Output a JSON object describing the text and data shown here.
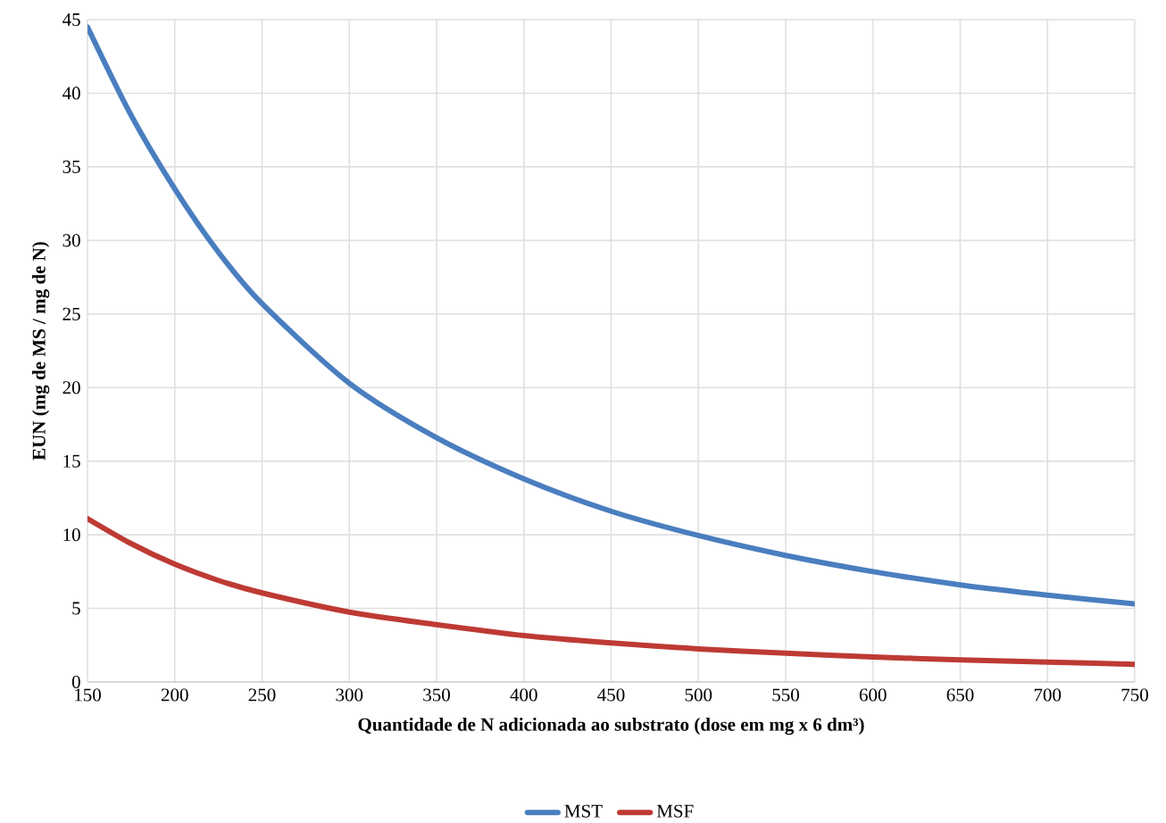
{
  "chart_data": {
    "type": "line",
    "xlabel": "Quantidade de N adicionada ao substrato (dose em mg x 6 dm³)",
    "ylabel": "EUN (mg de MS / mg de N)",
    "x": [
      150,
      175,
      200,
      225,
      250,
      300,
      350,
      400,
      450,
      500,
      550,
      600,
      650,
      700,
      750
    ],
    "series": [
      {
        "name": "MST",
        "color": "#4a7ebf",
        "values": [
          44.5,
          38.5,
          33.5,
          29.2,
          25.7,
          20.3,
          16.6,
          13.8,
          11.6,
          9.95,
          8.6,
          7.5,
          6.6,
          5.9,
          5.3
        ]
      },
      {
        "name": "MSF",
        "color": "#be3a34",
        "values": [
          11.1,
          9.4,
          8.0,
          6.9,
          6.05,
          4.75,
          3.9,
          3.15,
          2.65,
          2.25,
          1.95,
          1.7,
          1.5,
          1.35,
          1.2
        ]
      }
    ],
    "xlim": [
      150,
      750
    ],
    "xticks": [
      150,
      200,
      250,
      300,
      350,
      400,
      450,
      500,
      550,
      600,
      650,
      700,
      750
    ],
    "ylim": [
      0,
      45
    ],
    "yticks": [
      0,
      5,
      10,
      15,
      20,
      25,
      30,
      35,
      40,
      45
    ],
    "grid": true,
    "legend": "bottom"
  }
}
